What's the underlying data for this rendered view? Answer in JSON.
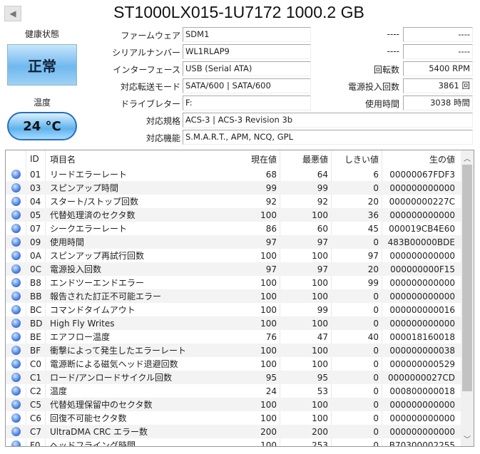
{
  "title": "ST1000LX015-1U7172 1000.2 GB",
  "back_icon": "triangle-left-icon",
  "health": {
    "label": "健康状態",
    "value": "正常",
    "color": "#6fb8ef"
  },
  "temperature": {
    "label": "温度",
    "value": "24 °C"
  },
  "info_left": [
    {
      "label": "ファームウェア",
      "value": "SDM1"
    },
    {
      "label": "シリアルナンバー",
      "value": "WL1RLAP9"
    },
    {
      "label": "インターフェース",
      "value": "USB (Serial ATA)"
    },
    {
      "label": "対応転送モード",
      "value": "SATA/600 | SATA/600"
    },
    {
      "label": "ドライブレター",
      "value": "F:"
    }
  ],
  "info_right": [
    {
      "label": "----",
      "value": "----"
    },
    {
      "label": "----",
      "value": "----"
    },
    {
      "label": "回転数",
      "value": "5400 RPM"
    },
    {
      "label": "電源投入回数",
      "value": "3861 回"
    },
    {
      "label": "使用時間",
      "value": "3038 時間"
    }
  ],
  "info_wide": [
    {
      "label": "対応規格",
      "value": "ACS-3 | ACS-3 Revision 3b"
    },
    {
      "label": "対応機能",
      "value": "S.M.A.R.T., APM, NCQ, GPL"
    }
  ],
  "table": {
    "headers": [
      "ID",
      "項目名",
      "現在値",
      "最悪値",
      "しきい値",
      "生の値"
    ],
    "rows": [
      [
        "01",
        "リードエラーレート",
        "68",
        "64",
        "6",
        "00000067FDF3"
      ],
      [
        "03",
        "スピンアップ時間",
        "99",
        "99",
        "0",
        "000000000000"
      ],
      [
        "04",
        "スタート/ストップ回数",
        "92",
        "92",
        "20",
        "00000000227C"
      ],
      [
        "05",
        "代替処理済のセクタ数",
        "100",
        "100",
        "36",
        "000000000000"
      ],
      [
        "07",
        "シークエラーレート",
        "86",
        "60",
        "45",
        "000019CB4E60"
      ],
      [
        "09",
        "使用時間",
        "97",
        "97",
        "0",
        "483B00000BDE"
      ],
      [
        "0A",
        "スピンアップ再試行回数",
        "100",
        "100",
        "97",
        "000000000000"
      ],
      [
        "0C",
        "電源投入回数",
        "97",
        "97",
        "20",
        "000000000F15"
      ],
      [
        "B8",
        "エンドツーエンドエラー",
        "100",
        "100",
        "99",
        "000000000000"
      ],
      [
        "BB",
        "報告された訂正不可能エラー",
        "100",
        "100",
        "0",
        "000000000000"
      ],
      [
        "BC",
        "コマンドタイムアウト",
        "100",
        "99",
        "0",
        "000000000016"
      ],
      [
        "BD",
        "High Fly Writes",
        "100",
        "100",
        "0",
        "000000000000"
      ],
      [
        "BE",
        "エアフロー温度",
        "76",
        "47",
        "40",
        "000018160018"
      ],
      [
        "BF",
        "衝撃によって発生したエラーレート",
        "100",
        "100",
        "0",
        "000000000038"
      ],
      [
        "C0",
        "電源断による磁気ヘッド退避回数",
        "100",
        "100",
        "0",
        "000000000529"
      ],
      [
        "C1",
        "ロード/アンロードサイクル回数",
        "95",
        "95",
        "0",
        "0000000027CD"
      ],
      [
        "C2",
        "温度",
        "24",
        "53",
        "0",
        "000800000018"
      ],
      [
        "C5",
        "代替処理保留中のセクタ数",
        "100",
        "100",
        "0",
        "000000000000"
      ],
      [
        "C6",
        "回復不可能セクタ数",
        "100",
        "100",
        "0",
        "000000000000"
      ],
      [
        "C7",
        "UltraDMA CRC エラー数",
        "200",
        "200",
        "0",
        "000000000000"
      ],
      [
        "F0",
        "ヘッドフライング時間",
        "100",
        "253",
        "0",
        "B70300002255"
      ]
    ],
    "status_icon": "blue-circle-icon"
  }
}
